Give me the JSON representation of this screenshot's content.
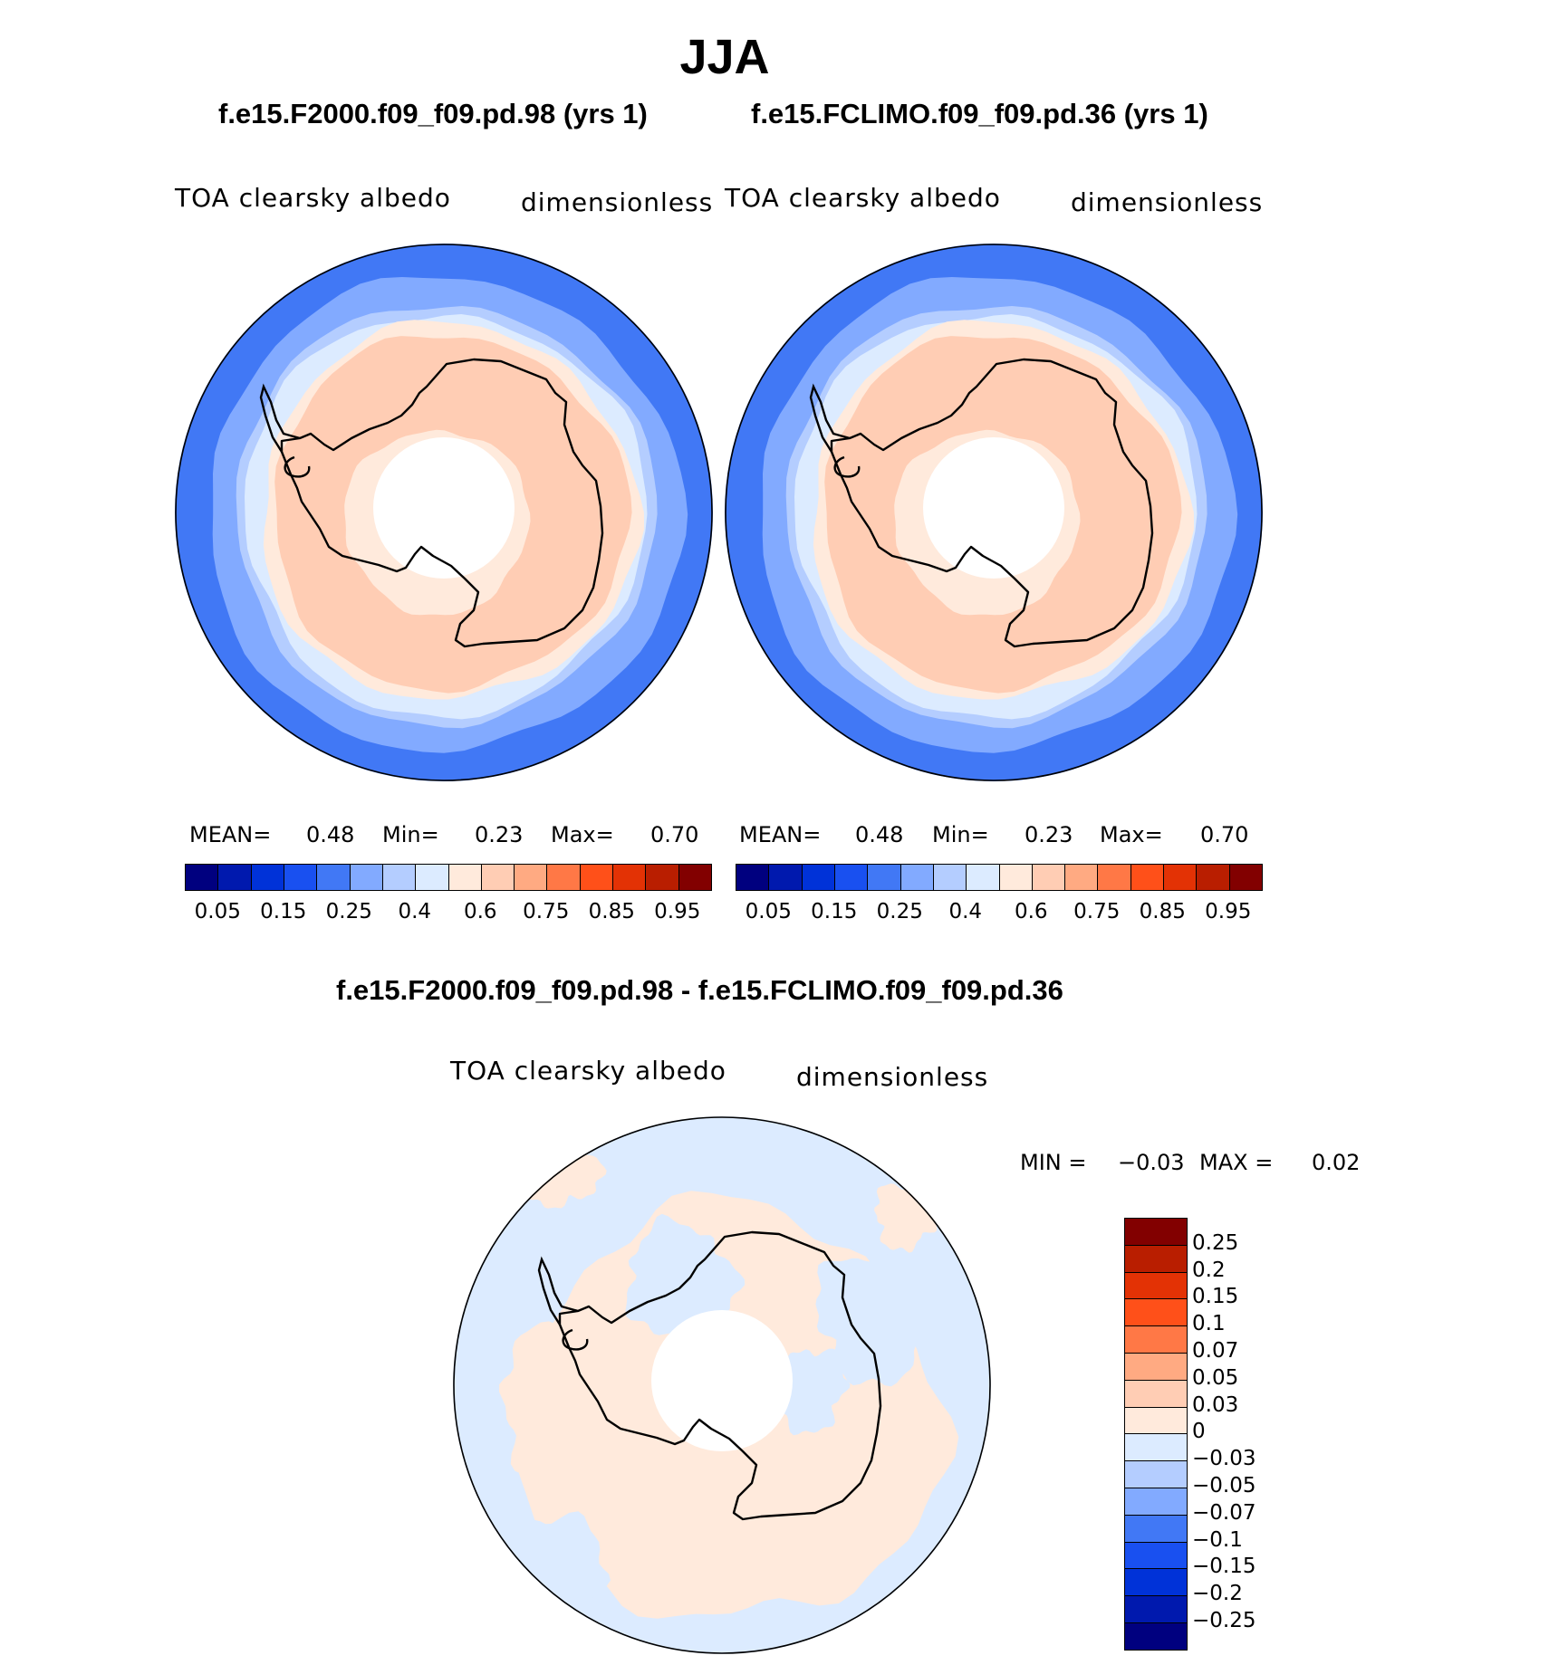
{
  "figure": {
    "season": "JJA",
    "panels": [
      {
        "case": "f.e15.F2000.f09_f09.pd.98 (yrs 1)",
        "variable": "TOA clearsky albedo",
        "units": "dimensionless",
        "stats": {
          "mean_label": "MEAN=",
          "mean": "0.48",
          "min_label": "Min=",
          "min": "0.23",
          "max_label": "Max=",
          "max": "0.70"
        }
      },
      {
        "case": "f.e15.FCLIMO.f09_f09.pd.36 (yrs 1)",
        "variable": "TOA clearsky albedo",
        "units": "dimensionless",
        "stats": {
          "mean_label": "MEAN=",
          "mean": "0.48",
          "min_label": "Min=",
          "min": "0.23",
          "max_label": "Max=",
          "max": "0.70"
        }
      }
    ],
    "difference": {
      "title": "f.e15.F2000.f09_f09.pd.98 - f.e15.FCLIMO.f09_f09.pd.36",
      "variable": "TOA clearsky albedo",
      "units": "dimensionless",
      "stats": {
        "min_label": "MIN =",
        "min": "−0.03",
        "max_label": "MAX =",
        "max": "0.02"
      }
    },
    "colorbar_abs": {
      "colors": [
        "#00007f",
        "#0019ae",
        "#0032d8",
        "#1950f0",
        "#4178f5",
        "#82aaff",
        "#b4cdff",
        "#dcebff",
        "#ffeadc",
        "#ffcdb4",
        "#ffaa82",
        "#ff7846",
        "#ff5019",
        "#e33205",
        "#b91e00",
        "#820000"
      ],
      "labels": [
        "0.05",
        "0.15",
        "0.25",
        "0.4",
        "0.6",
        "0.75",
        "0.85",
        "0.95"
      ]
    },
    "colorbar_diff": {
      "colors": [
        "#820000",
        "#b91e00",
        "#e33205",
        "#ff5019",
        "#ff7846",
        "#ffaa82",
        "#ffcdb4",
        "#ffeadc",
        "#dcebff",
        "#b4cdff",
        "#82aaff",
        "#4178f5",
        "#1950f0",
        "#0032d8",
        "#0019ae",
        "#00007f"
      ],
      "labels": [
        "0.25",
        "0.2",
        "0.15",
        "0.1",
        "0.07",
        "0.05",
        "0.03",
        "0",
        "−0.03",
        "−0.05",
        "−0.07",
        "−0.1",
        "−0.15",
        "−0.2",
        "−0.25"
      ]
    },
    "map_colors": {
      "band_outer": "#4178f5",
      "band_mid": "#82aaff",
      "band_light": "#b4cdff",
      "band_pale": "#dcebff",
      "ice_edge": "#ffeadc",
      "ice": "#ffcdb4",
      "diff_neg": "#dcebff",
      "diff_pos": "#ffeadc"
    }
  }
}
